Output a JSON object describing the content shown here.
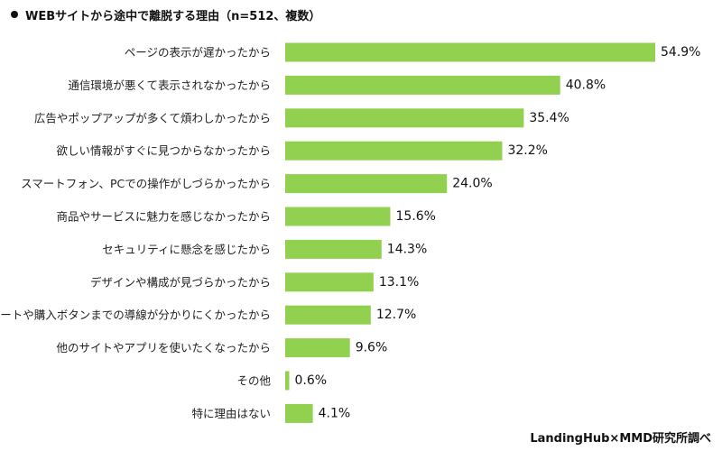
{
  "chart_data": {
    "type": "bar",
    "orientation": "horizontal",
    "title": "WEBサイトから途中で離脱する理由（n=512、複数）",
    "source": "LandingHub×MMD研究所調べ",
    "bar_color": "#92d050",
    "value_suffix": "%",
    "grid": false,
    "categories": [
      "ページの表示が遅かったから",
      "通信環境が悪くて表示されなかったから",
      "広告やポップアップが多くて煩わしかったから",
      "欲しい情報がすぐに見つからなかったから",
      "スマートフォン、PCでの操作がしづらかったから",
      "商品やサービスに魅力を感じなかったから",
      "セキュリティに懸念を感じたから",
      "デザインや構成が見づらかったから",
      "カートや購入ボタンまでの導線が分かりにくかったから",
      "他のサイトやアプリを使いたくなったから",
      "その他",
      "特に理由はない"
    ],
    "values": [
      54.9,
      40.8,
      35.4,
      32.2,
      24.0,
      15.6,
      14.3,
      13.1,
      12.7,
      9.6,
      0.6,
      4.1
    ]
  }
}
